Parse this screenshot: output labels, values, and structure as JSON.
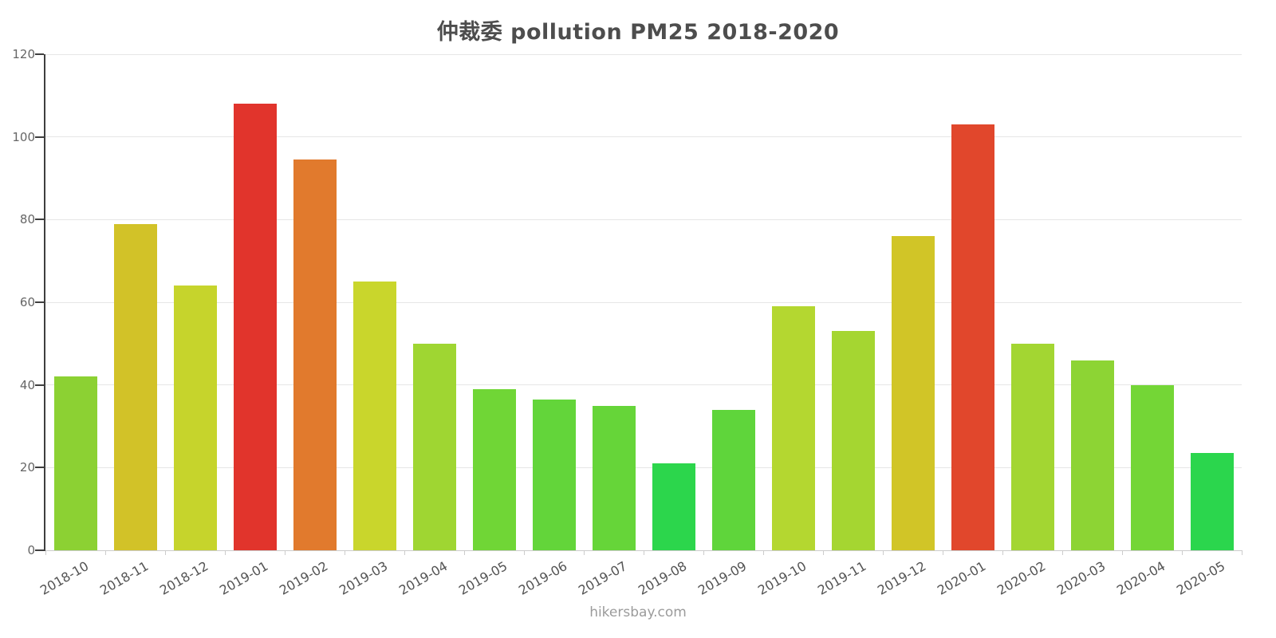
{
  "title": "仲裁委 pollution PM25 2018-2020",
  "credits": "hikersbay.com",
  "chart_data": {
    "type": "bar",
    "title": "仲裁委 pollution PM25 2018-2020",
    "categories": [
      "2018-10",
      "2018-11",
      "2018-12",
      "2019-01",
      "2019-02",
      "2019-03",
      "2019-04",
      "2019-05",
      "2019-06",
      "2019-07",
      "2019-08",
      "2019-09",
      "2019-10",
      "2019-11",
      "2019-12",
      "2020-01",
      "2020-02",
      "2020-03",
      "2020-04",
      "2020-05"
    ],
    "values": [
      42,
      79,
      64,
      108,
      94.5,
      65,
      50,
      39,
      36.5,
      35,
      21,
      34,
      59,
      53,
      76,
      103,
      50,
      46,
      40,
      23.5
    ],
    "bar_colors": [
      "#8cd133",
      "#d2c228",
      "#c6d42c",
      "#e1342c",
      "#e17a2d",
      "#c9d62c",
      "#9fd632",
      "#70d636",
      "#63d53a",
      "#66d539",
      "#2cd64c",
      "#5fd53b",
      "#b4d730",
      "#a5d631",
      "#d1c527",
      "#e1472c",
      "#a3d632",
      "#8dd434",
      "#74d636",
      "#2bd64d"
    ],
    "xlabel": "",
    "ylabel": "",
    "ylim": [
      0,
      120
    ],
    "yticks": [
      0,
      20,
      40,
      60,
      80,
      100,
      120
    ],
    "grid": true,
    "legend": false
  },
  "colors": {
    "axis": "#3f3f3f",
    "grid": "#e6e6e6",
    "x_axis": "#cccccc",
    "title_text": "#4d4d4d",
    "label_text": "#545454",
    "credits_text": "#9b9b9b"
  }
}
